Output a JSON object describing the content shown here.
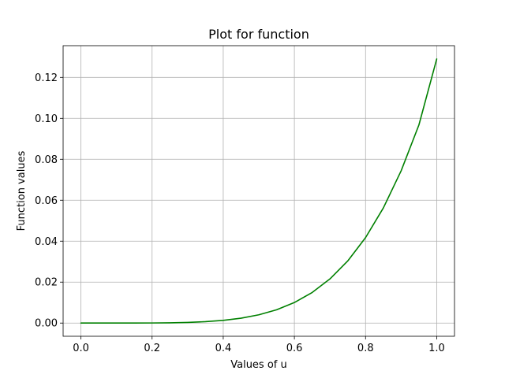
{
  "chart_data": {
    "type": "line",
    "title": "Plot for function",
    "xlabel": "Values of u",
    "ylabel": "Function values",
    "xlim": [
      -0.05,
      1.05
    ],
    "ylim": [
      -0.00645,
      0.1355
    ],
    "xticks": [
      0.0,
      0.2,
      0.4,
      0.6,
      0.8,
      1.0
    ],
    "xtick_labels": [
      "0.0",
      "0.2",
      "0.4",
      "0.6",
      "0.8",
      "1.0"
    ],
    "yticks": [
      0.0,
      0.02,
      0.04,
      0.06,
      0.08,
      0.1,
      0.12
    ],
    "ytick_labels": [
      "0.00",
      "0.02",
      "0.04",
      "0.06",
      "0.08",
      "0.10",
      "0.12"
    ],
    "grid": true,
    "series": [
      {
        "color": "#008000",
        "x": [
          0.0,
          0.05,
          0.1,
          0.15,
          0.2,
          0.25,
          0.3,
          0.35,
          0.4,
          0.45,
          0.5,
          0.55,
          0.6,
          0.65,
          0.7,
          0.75,
          0.8,
          0.85,
          0.9,
          0.95,
          1.0
        ],
        "y": [
          0.0,
          0.0,
          0.0,
          0.0,
          4e-05,
          0.00013,
          0.00031,
          0.00068,
          0.00132,
          0.00238,
          0.00403,
          0.0065,
          0.01003,
          0.01494,
          0.02157,
          0.03035,
          0.04173,
          0.05622,
          0.07437,
          0.09679,
          0.129
        ]
      }
    ]
  }
}
